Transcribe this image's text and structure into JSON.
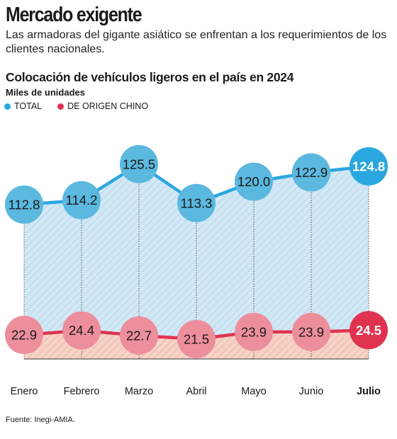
{
  "header": {
    "title": "Mercado exigente",
    "subtitle": "Las armadoras del gigante asiático se enfrentan a los requerimientos de los clientes nacionales."
  },
  "chart_header": {
    "title": "Colocación de vehículos ligeros en el país en 2024",
    "unit": "Miles de unidades"
  },
  "legend": {
    "items": [
      {
        "label": "TOTAL",
        "color": "#2aa7e0"
      },
      {
        "label": "DE ORIGEN CHINO",
        "color": "#e0334f"
      }
    ]
  },
  "source": "Fuente: Inegi-AMIA.",
  "chart_data": {
    "type": "line",
    "categories": [
      "Enero",
      "Febrero",
      "Marzo",
      "Abril",
      "Mayo",
      "Junio",
      "Julio"
    ],
    "highlight_category": "Julio",
    "series": [
      {
        "name": "TOTAL",
        "values": [
          112.8,
          114.2,
          125.5,
          113.3,
          120.0,
          122.9,
          124.8
        ],
        "value_labels": [
          "112.8",
          "114.2",
          "125.5",
          "113.3",
          "120.0",
          "122.9",
          "124.8"
        ],
        "color": "#2aa7e0",
        "marker_color": "#5bb8df",
        "fill": "#cfe6f4"
      },
      {
        "name": "DE ORIGEN CHINO",
        "values": [
          22.9,
          24.4,
          22.7,
          21.5,
          23.9,
          23.9,
          24.5
        ],
        "value_labels": [
          "22.9",
          "24.4",
          "22.7",
          "21.5",
          "23.9",
          "23.9",
          "24.5"
        ],
        "color": "#e0334f",
        "marker_color": "#ec8e9c",
        "fill": "#f5cfc2"
      }
    ],
    "grid": false,
    "legend_position": "top-left"
  }
}
